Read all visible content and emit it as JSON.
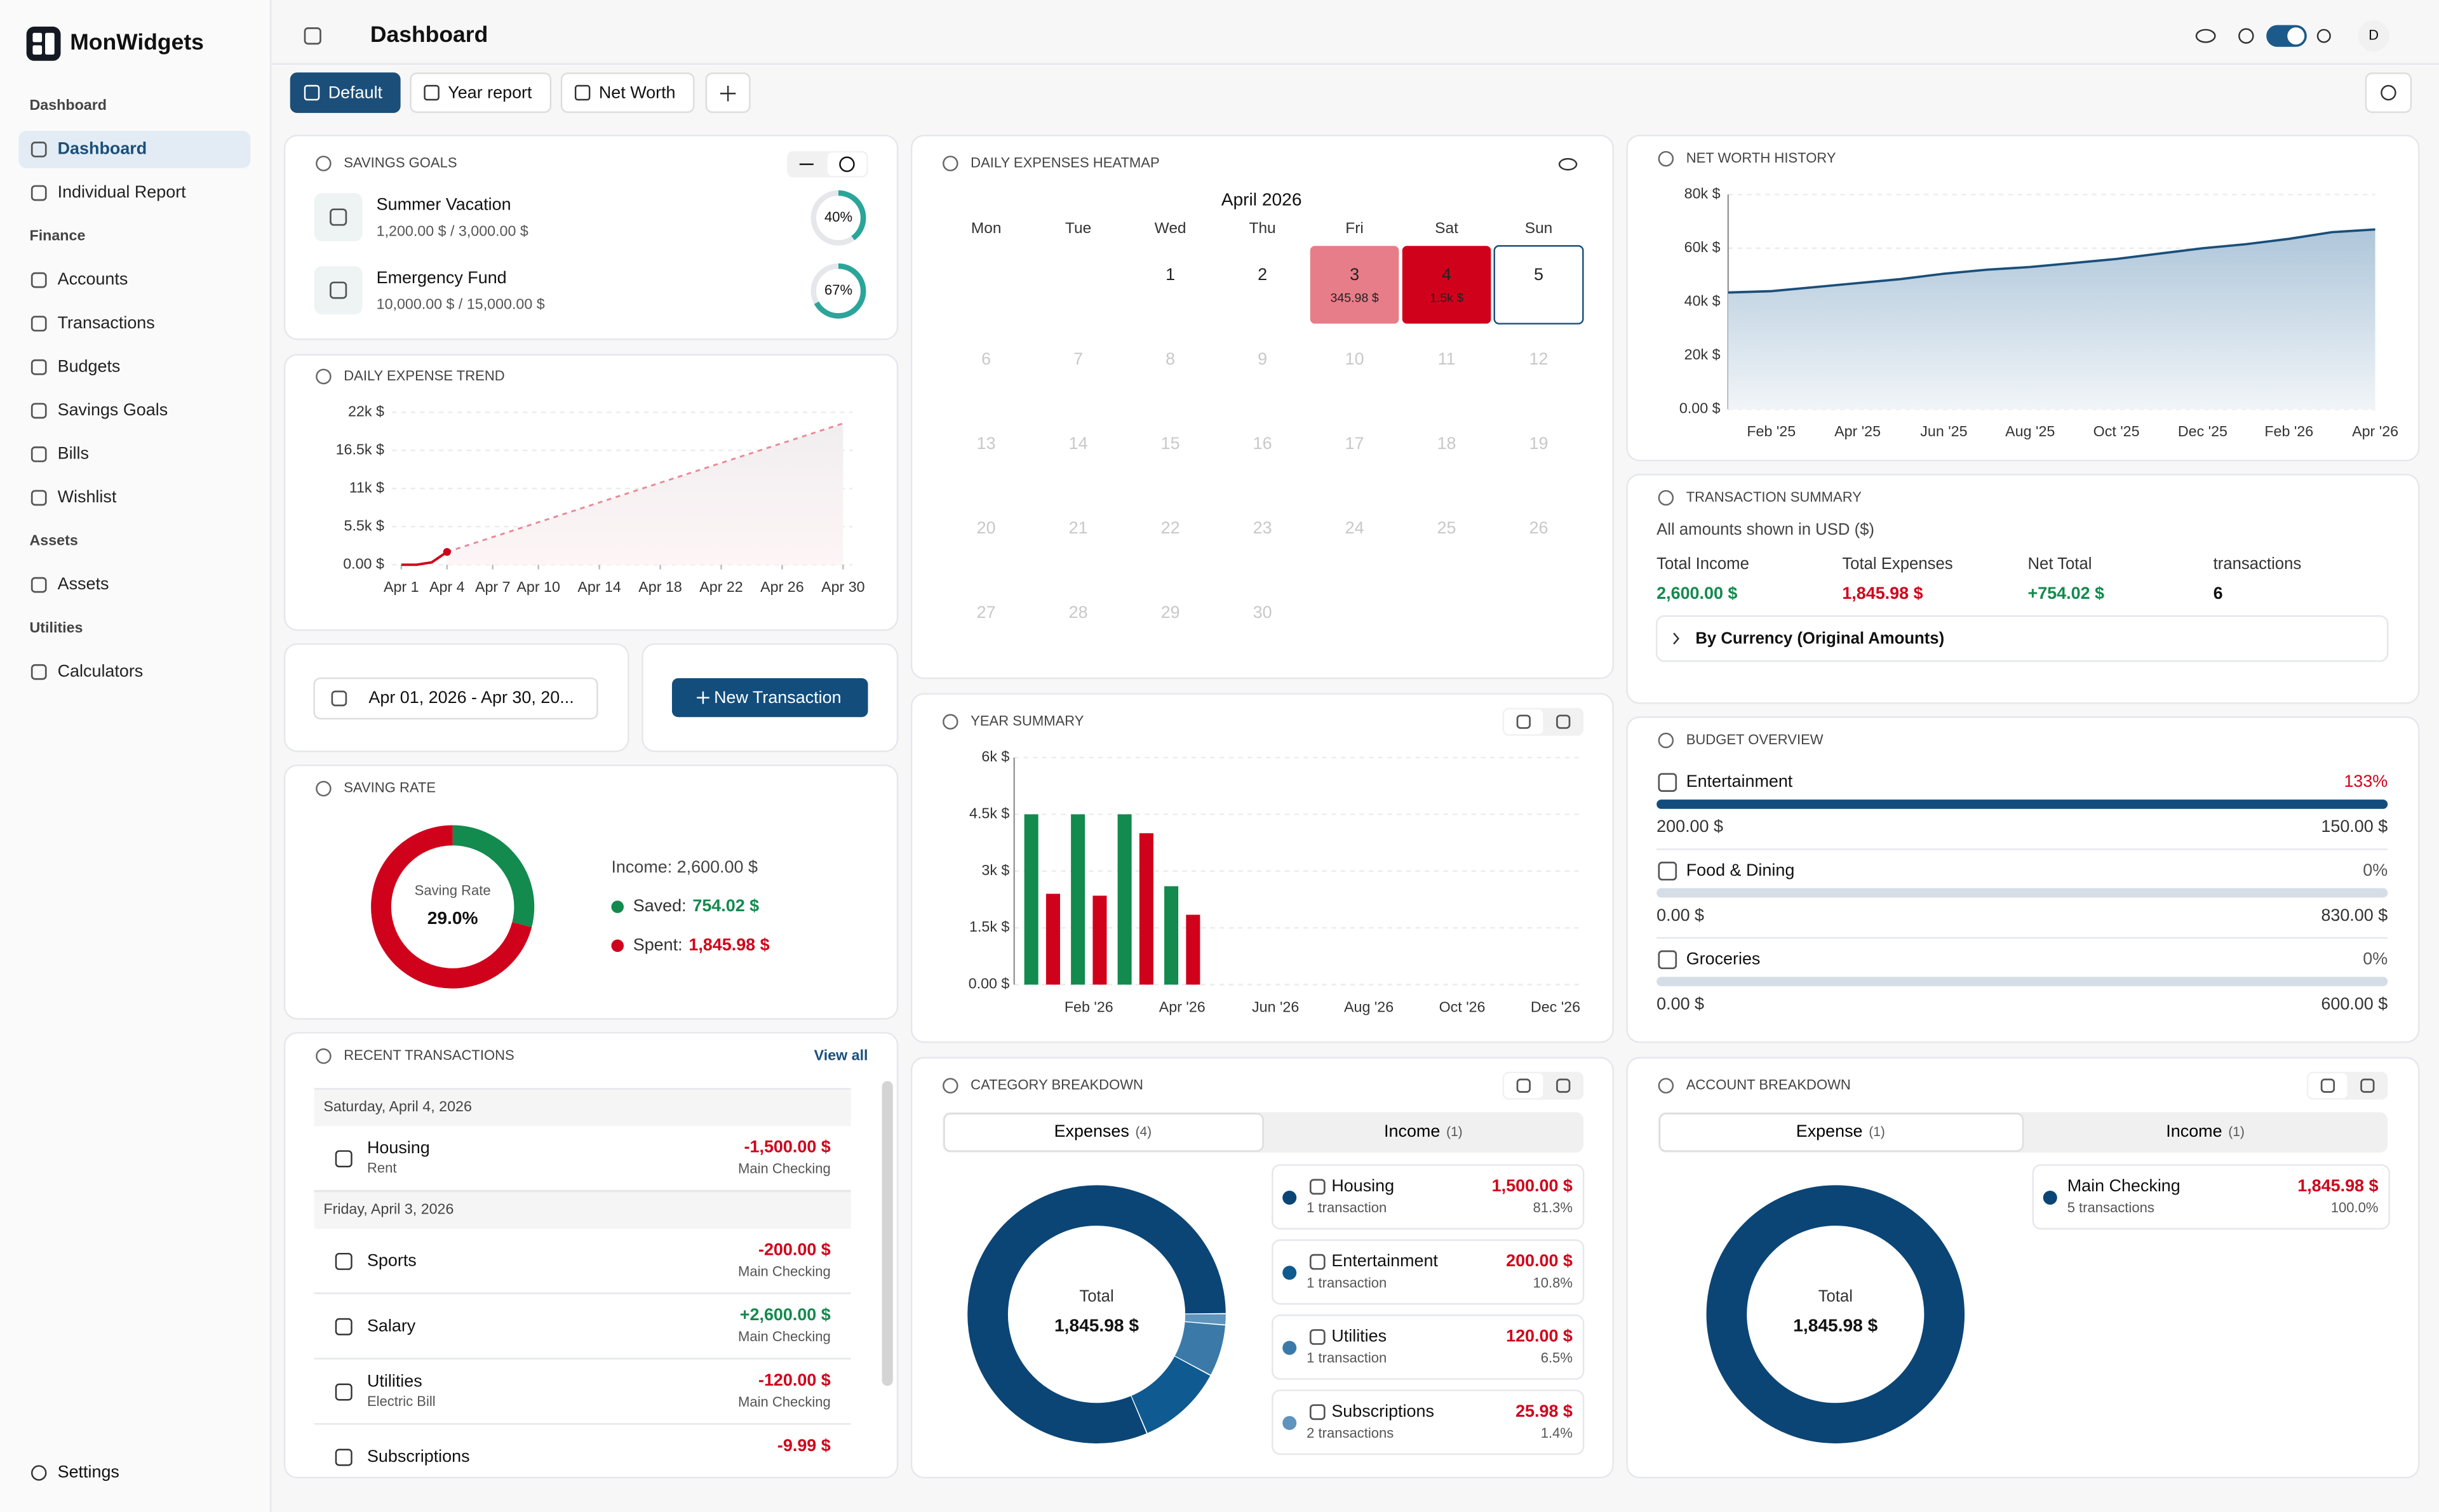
{
  "brand": "MonWidgets",
  "page_title": "Dashboard",
  "user_initial": "D",
  "sidebar": {
    "sections": [
      {
        "title": "Dashboard",
        "items": [
          "Dashboard",
          "Individual Report"
        ]
      },
      {
        "title": "Finance",
        "items": [
          "Accounts",
          "Transactions",
          "Budgets",
          "Savings Goals",
          "Bills",
          "Wishlist"
        ]
      },
      {
        "title": "Assets",
        "items": [
          "Assets"
        ]
      },
      {
        "title": "Utilities",
        "items": [
          "Calculators"
        ]
      }
    ],
    "footer": "Settings"
  },
  "tabs": [
    "Default",
    "Year report",
    "Net Worth"
  ],
  "savings_goals": {
    "title": "SAVINGS GOALS",
    "goals": [
      {
        "name": "Summer Vacation",
        "amounts": "1,200.00 $ / 3,000.00 $",
        "progress": 40,
        "progress_label": "40%"
      },
      {
        "name": "Emergency Fund",
        "amounts": "10,000.00 $ / 15,000.00 $",
        "progress": 67,
        "progress_label": "67%"
      }
    ]
  },
  "daily_expense_trend": {
    "title": "DAILY EXPENSE TREND",
    "xlim": [
      1,
      30
    ],
    "xticks": [
      {
        "value": 1,
        "label": "Apr 1"
      },
      {
        "value": 4,
        "label": "Apr 4"
      },
      {
        "value": 7,
        "label": "Apr 7"
      },
      {
        "value": 10,
        "label": "Apr 10"
      },
      {
        "value": 14,
        "label": "Apr 14"
      },
      {
        "value": 18,
        "label": "Apr 18"
      },
      {
        "value": 22,
        "label": "Apr 22"
      },
      {
        "value": 26,
        "label": "Apr 26"
      },
      {
        "value": 30,
        "label": "Apr 30"
      }
    ],
    "ylim": [
      0,
      22000
    ],
    "yticks": [
      {
        "value": 0,
        "label": "0.00 $"
      },
      {
        "value": 5500,
        "label": "5.5k $"
      },
      {
        "value": 11000,
        "label": "11k $"
      },
      {
        "value": 16500,
        "label": "16.5k $"
      },
      {
        "value": 22000,
        "label": "22k $"
      }
    ],
    "actual": {
      "x": [
        1,
        2,
        3,
        4
      ],
      "values": [
        0,
        0,
        345.98,
        1845.98
      ],
      "color": "#d0021b"
    },
    "projection": {
      "x": [
        4,
        30
      ],
      "values": [
        1845.98,
        20400
      ],
      "color": "#e98a94"
    }
  },
  "date_range": "Apr 01, 2026 - Apr 30, 20...",
  "new_transaction": "New Transaction",
  "saving_rate": {
    "title": "SAVING RATE",
    "center_label": "Saving Rate",
    "center_value": "29.0%",
    "income": "Income: 2,600.00 $",
    "segments": [
      {
        "label": "Saved:",
        "value": 754.02,
        "value_label": "754.02 $",
        "color": "#138a4e"
      },
      {
        "label": "Spent:",
        "value": 1845.98,
        "value_label": "1,845.98 $",
        "color": "#d0021b"
      }
    ]
  },
  "recent_transactions": {
    "title": "RECENT TRANSACTIONS",
    "view_all": "View all",
    "groups": [
      {
        "date": "Saturday, April 4, 2026",
        "items": [
          {
            "name": "Housing",
            "note": "Rent",
            "amount": "-1,500.00 $",
            "account": "Main Checking"
          }
        ]
      },
      {
        "date": "Friday, April 3, 2026",
        "items": [
          {
            "name": "Sports",
            "amount": "-200.00 $",
            "account": "Main Checking"
          },
          {
            "name": "Salary",
            "amount": "+2,600.00 $",
            "account": "Main Checking"
          },
          {
            "name": "Utilities",
            "note": "Electric Bill",
            "amount": "-120.00 $",
            "account": "Main Checking"
          },
          {
            "name": "Subscriptions",
            "amount": "-9.99 $"
          }
        ]
      }
    ]
  },
  "heatmap": {
    "title": "DAILY EXPENSES HEATMAP",
    "month": "April 2026",
    "weekdays": [
      "Mon",
      "Tue",
      "Wed",
      "Thu",
      "Fri",
      "Sat",
      "Sun"
    ],
    "first_weekday": 2,
    "today": 5,
    "days": [
      1,
      2,
      3,
      4,
      5,
      6,
      7,
      8,
      9,
      10,
      11,
      12,
      13,
      14,
      15,
      16,
      17,
      18,
      19,
      20,
      21,
      22,
      23,
      24,
      25,
      26,
      27,
      28,
      29,
      30
    ],
    "spend": [
      null,
      null,
      345.98,
      1500,
      null,
      null,
      null,
      null,
      null,
      null,
      null,
      null,
      null,
      null,
      null,
      null,
      null,
      null,
      null,
      null,
      null,
      null,
      null,
      null,
      null,
      null,
      null,
      null,
      null,
      null
    ],
    "spend_labels": [
      null,
      null,
      "345.98 $",
      "1.5k $",
      null,
      null,
      null,
      null,
      null,
      null,
      null,
      null,
      null,
      null,
      null,
      null,
      null,
      null,
      null,
      null,
      null,
      null,
      null,
      null,
      null,
      null,
      null,
      null,
      null,
      null
    ]
  },
  "year_summary": {
    "title": "YEAR SUMMARY",
    "categories": [
      null,
      "Feb '26",
      null,
      "Apr '26",
      null,
      "Jun '26",
      null,
      "Aug '26",
      null,
      "Oct '26",
      null,
      "Dec '26"
    ],
    "ylim": [
      0,
      6000
    ],
    "yticks": [
      {
        "value": 0,
        "label": "0.00 $"
      },
      {
        "value": 1500,
        "label": "1.5k $"
      },
      {
        "value": 3000,
        "label": "3k $"
      },
      {
        "value": 4500,
        "label": "4.5k $"
      },
      {
        "value": 6000,
        "label": "6k $"
      }
    ],
    "series": [
      {
        "color": "#138a4e",
        "values": [
          4500,
          4500,
          4500,
          2600,
          null,
          null,
          null,
          null,
          null,
          null,
          null,
          null
        ]
      },
      {
        "color": "#d0021b",
        "values": [
          2400,
          2350,
          4000,
          1845.98,
          null,
          null,
          null,
          null,
          null,
          null,
          null,
          null
        ]
      }
    ]
  },
  "net_worth_history": {
    "title": "NET WORTH HISTORY",
    "categories": [
      null,
      "Feb '25",
      null,
      "Apr '25",
      null,
      "Jun '25",
      null,
      "Aug '25",
      null,
      "Oct '25",
      null,
      "Dec '25",
      null,
      "Feb '26",
      null,
      "Apr '26"
    ],
    "values": [
      43500,
      44000,
      45500,
      47000,
      48500,
      50500,
      52000,
      53000,
      54500,
      56000,
      58000,
      60000,
      61500,
      63500,
      66000,
      67000
    ],
    "ylim": [
      0,
      80000
    ],
    "yticks": [
      {
        "value": 0,
        "label": "0.00 $"
      },
      {
        "value": 20000,
        "label": "20k $"
      },
      {
        "value": 40000,
        "label": "40k $"
      },
      {
        "value": 60000,
        "label": "60k $"
      },
      {
        "value": 80000,
        "label": "80k $"
      }
    ],
    "color": "#1a4f7a"
  },
  "transaction_summary": {
    "title": "TRANSACTION SUMMARY",
    "note": "All amounts shown in USD ($)",
    "stats": [
      {
        "label": "Total Income",
        "value": "2,600.00 $",
        "color": "#138a4e"
      },
      {
        "label": "Total Expenses",
        "value": "1,845.98 $",
        "color": "#d0021b"
      },
      {
        "label": "Net Total",
        "value": "+754.02 $",
        "color": "#138a4e"
      },
      {
        "label": "transactions",
        "value": 6,
        "color": "#111111"
      }
    ],
    "by_currency": "By Currency (Original Amounts)"
  },
  "budget_overview": {
    "title": "BUDGET OVERVIEW",
    "items": [
      {
        "name": "Entertainment",
        "percent": 133,
        "percent_label": "133%",
        "spent": "200.00 $",
        "budget": "150.00 $"
      },
      {
        "name": "Food & Dining",
        "percent": 0,
        "percent_label": "0%",
        "spent": "0.00 $",
        "budget": "830.00 $"
      },
      {
        "name": "Groceries",
        "percent": 0,
        "percent_label": "0%",
        "spent": "0.00 $",
        "budget": "600.00 $"
      }
    ]
  },
  "category_breakdown": {
    "title": "CATEGORY BREAKDOWN",
    "tabs": [
      {
        "label": "Expenses",
        "count": "(4)"
      },
      {
        "label": "Income",
        "count": "(1)"
      }
    ],
    "total_label": "Total",
    "total": "1,845.98 $",
    "items": [
      {
        "name": "Housing",
        "count": "1 transaction",
        "amount": "1,500.00 $",
        "share": 81.3,
        "share_label": "81.3%",
        "color": "#0b4575"
      },
      {
        "name": "Entertainment",
        "count": "1 transaction",
        "amount": "200.00 $",
        "share": 10.8,
        "share_label": "10.8%",
        "color": "#0f5a90"
      },
      {
        "name": "Utilities",
        "count": "1 transaction",
        "amount": "120.00 $",
        "share": 6.5,
        "share_label": "6.5%",
        "color": "#3b7aa8"
      },
      {
        "name": "Subscriptions",
        "count": "2 transactions",
        "amount": "25.98 $",
        "share": 1.4,
        "share_label": "1.4%",
        "color": "#5e94bd"
      }
    ]
  },
  "account_breakdown": {
    "title": "ACCOUNT BREAKDOWN",
    "tabs": [
      {
        "label": "Expense",
        "count": "(1)"
      },
      {
        "label": "Income",
        "count": "(1)"
      }
    ],
    "total_label": "Total",
    "total": "1,845.98 $",
    "items": [
      {
        "name": "Main Checking",
        "count": "5 transactions",
        "amount": "1,845.98 $",
        "share": 100,
        "share_label": "100.0%",
        "color": "#0b4575"
      }
    ]
  }
}
